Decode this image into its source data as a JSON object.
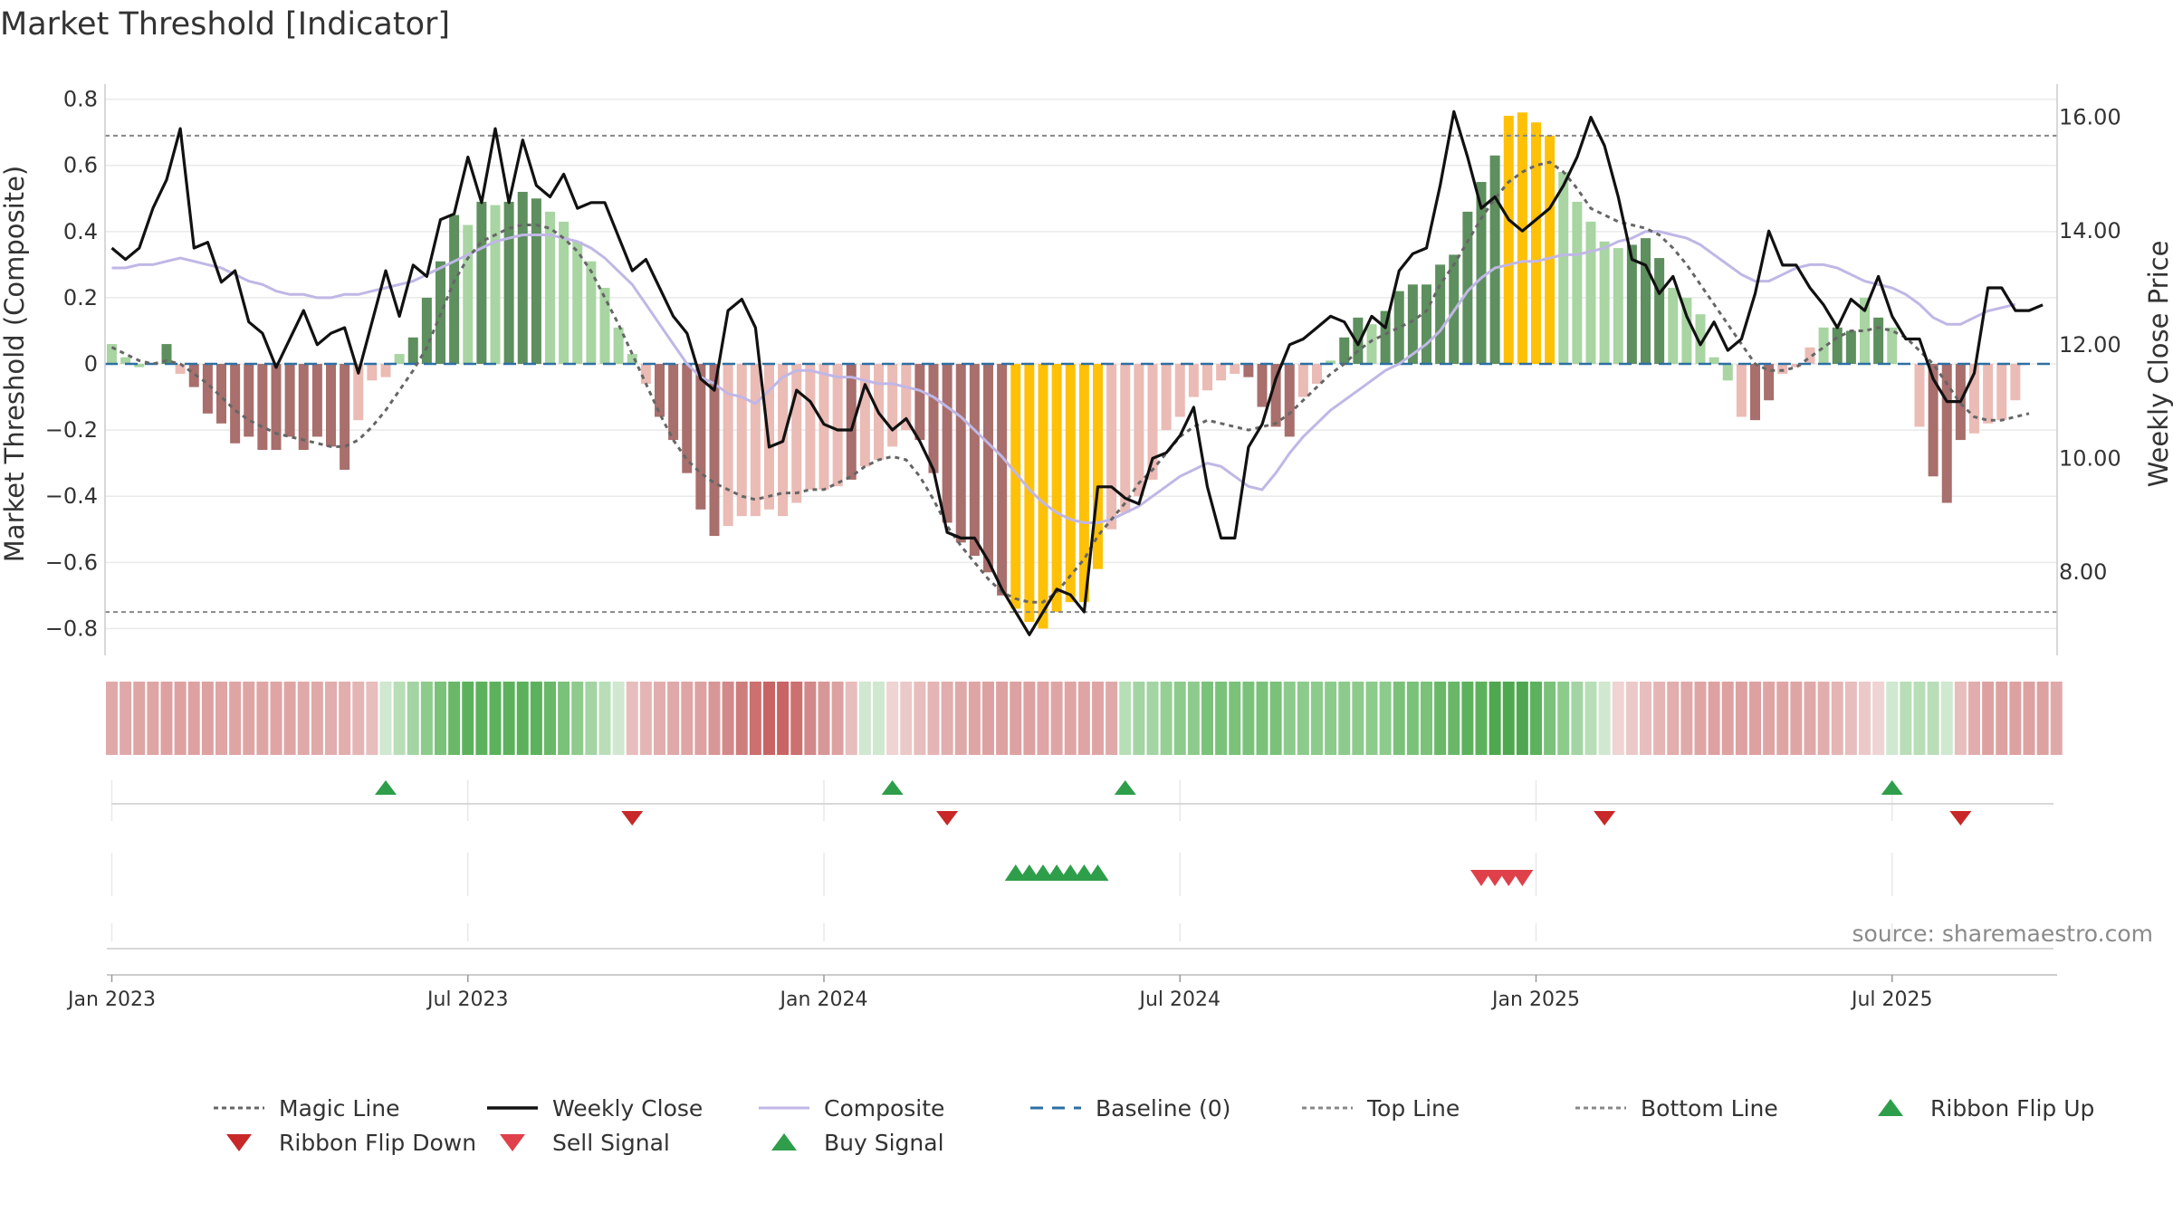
{
  "chart_data": {
    "type": "bar",
    "title": "Market Threshold [Indicator]",
    "ylabel": "Market Threshold (Composite)",
    "y2label": "Weekly Close Price",
    "source": "source: sharemaestro.com",
    "ylim": [
      -0.87,
      0.84
    ],
    "y2lim": [
      6.6,
      16.55
    ],
    "yticks": [
      "0.8",
      "0.6",
      "0.4",
      "0.2",
      "0",
      "−0.2",
      "−0.4",
      "−0.6",
      "−0.8"
    ],
    "yticks_values": [
      0.8,
      0.6,
      0.4,
      0.2,
      0,
      -0.2,
      -0.4,
      -0.6,
      -0.8
    ],
    "y2ticks": [
      "16.00",
      "14.00",
      "12.00",
      "10.00",
      "8.00"
    ],
    "y2ticks_values": [
      16,
      14,
      12,
      10,
      8
    ],
    "xticks": [
      "Jan 2023",
      "Jul 2023",
      "Jan 2024",
      "Jul 2024",
      "Jan 2025",
      "Jul 2025"
    ],
    "xticks_weeks": [
      0,
      26,
      52,
      78,
      104,
      130
    ],
    "week_start": "Jan 2023",
    "top_line": 0.69,
    "bottom_line": -0.75,
    "grid": true,
    "legend_position": "bottom",
    "colors": {
      "dark_green": "#5e8f5e",
      "light_green": "#a8d5a2",
      "dark_red": "#a86f6c",
      "light_red": "#ebbbb5",
      "extreme": "#ffc107",
      "close": "#111111",
      "composite": "#c0b7e6",
      "magic": "#666666",
      "baseline": "#2d6fa3",
      "threshold": "#888888",
      "flip_up": "#2e9e4a",
      "flip_down": "#c82828",
      "buy": "#2e9e4a",
      "sell": "#e0404a"
    },
    "composite_bars": [
      0.06,
      0.02,
      -0.01,
      0,
      0.06,
      -0.03,
      -0.07,
      -0.15,
      -0.18,
      -0.24,
      -0.22,
      -0.26,
      -0.26,
      -0.22,
      -0.26,
      -0.22,
      -0.25,
      -0.32,
      -0.17,
      -0.05,
      -0.04,
      0.03,
      0.08,
      0.2,
      0.31,
      0.45,
      0.42,
      0.49,
      0.48,
      0.49,
      0.52,
      0.5,
      0.46,
      0.43,
      0.37,
      0.31,
      0.23,
      0.11,
      0.03,
      -0.06,
      -0.16,
      -0.23,
      -0.33,
      -0.44,
      -0.52,
      -0.49,
      -0.46,
      -0.46,
      -0.44,
      -0.46,
      -0.42,
      -0.38,
      -0.38,
      -0.37,
      -0.35,
      -0.31,
      -0.29,
      -0.25,
      -0.2,
      -0.23,
      -0.33,
      -0.48,
      -0.54,
      -0.58,
      -0.63,
      -0.7,
      -0.74,
      -0.78,
      -0.8,
      -0.75,
      -0.72,
      -0.72,
      -0.62,
      -0.5,
      -0.45,
      -0.4,
      -0.35,
      -0.2,
      -0.16,
      -0.1,
      -0.08,
      -0.05,
      -0.03,
      -0.04,
      -0.13,
      -0.19,
      -0.22,
      -0.1,
      -0.06,
      0.01,
      0.08,
      0.14,
      0.12,
      0.16,
      0.22,
      0.24,
      0.24,
      0.3,
      0.33,
      0.46,
      0.55,
      0.63,
      0.75,
      0.76,
      0.73,
      0.69,
      0.58,
      0.49,
      0.43,
      0.37,
      0.35,
      0.36,
      0.38,
      0.32,
      0.23,
      0.2,
      0.15,
      0.02,
      -0.05,
      -0.16,
      -0.17,
      -0.11,
      -0.03,
      -0.01,
      0.05,
      0.11,
      0.11,
      0.1,
      0.2,
      0.14,
      0.11,
      0,
      -0.19,
      -0.34,
      -0.42,
      -0.23,
      -0.21,
      -0.18,
      -0.17,
      -0.11
    ],
    "bar_class": [
      "lg",
      "lg",
      "lg",
      "lg",
      "dg",
      "lr",
      "dr",
      "dr",
      "dr",
      "dr",
      "dr",
      "dr",
      "dr",
      "dr",
      "dr",
      "dr",
      "dr",
      "dr",
      "lr",
      "lr",
      "lr",
      "lg",
      "dg",
      "dg",
      "dg",
      "dg",
      "lg",
      "dg",
      "lg",
      "dg",
      "dg",
      "dg",
      "lg",
      "lg",
      "lg",
      "lg",
      "lg",
      "lg",
      "lg",
      "lr",
      "dr",
      "dr",
      "dr",
      "dr",
      "dr",
      "lr",
      "lr",
      "lr",
      "lr",
      "lr",
      "lr",
      "lr",
      "lr",
      "lr",
      "dr",
      "lr",
      "lr",
      "lr",
      "lr",
      "dr",
      "dr",
      "dr",
      "dr",
      "dr",
      "dr",
      "dr",
      "y",
      "y",
      "y",
      "y",
      "y",
      "y",
      "y",
      "lr",
      "lr",
      "lr",
      "lr",
      "lr",
      "lr",
      "lr",
      "lr",
      "lr",
      "lr",
      "dr",
      "dr",
      "dr",
      "dr",
      "lr",
      "lr",
      "lg",
      "dg",
      "dg",
      "lg",
      "dg",
      "dg",
      "dg",
      "dg",
      "dg",
      "dg",
      "dg",
      "dg",
      "dg",
      "y",
      "y",
      "y",
      "y",
      "lg",
      "lg",
      "lg",
      "lg",
      "lg",
      "dg",
      "dg",
      "dg",
      "lg",
      "lg",
      "lg",
      "lg",
      "lg",
      "lr",
      "dr",
      "dr",
      "lr",
      "lr",
      "lr",
      "lg",
      "dg",
      "dg",
      "lg",
      "dg",
      "lg",
      "lg",
      "lr",
      "dr",
      "dr",
      "dr",
      "lr",
      "lr",
      "lr",
      "lr",
      "lr"
    ],
    "weekly_close": [
      13.7,
      13.5,
      13.7,
      14.4,
      14.9,
      15.8,
      13.7,
      13.8,
      13.1,
      13.3,
      12.4,
      12.2,
      11.6,
      12.1,
      12.6,
      12.0,
      12.2,
      12.3,
      11.5,
      12.4,
      13.3,
      12.5,
      13.4,
      13.2,
      14.2,
      14.3,
      15.3,
      14.5,
      15.8,
      14.5,
      15.6,
      14.8,
      14.6,
      15.0,
      14.4,
      14.5,
      14.5,
      13.9,
      13.3,
      13.5,
      13.0,
      12.5,
      12.2,
      11.4,
      11.2,
      12.6,
      12.8,
      12.3,
      10.2,
      10.3,
      11.2,
      11.0,
      10.6,
      10.5,
      10.5,
      11.3,
      10.8,
      10.5,
      10.7,
      10.3,
      9.8,
      8.7,
      8.6,
      8.6,
      8.2,
      7.7,
      7.3,
      6.9,
      7.3,
      7.7,
      7.6,
      7.3,
      9.5,
      9.5,
      9.3,
      9.2,
      10.0,
      10.1,
      10.4,
      10.9,
      9.5,
      8.6,
      8.6,
      10.2,
      10.6,
      11.4,
      12.0,
      12.1,
      12.3,
      12.5,
      12.4,
      12.0,
      12.5,
      12.3,
      13.3,
      13.6,
      13.7,
      14.8,
      16.1,
      15.3,
      14.4,
      14.6,
      14.2,
      14.0,
      14.2,
      14.4,
      14.8,
      15.3,
      16.0,
      15.5,
      14.6,
      13.5,
      13.4,
      12.9,
      13.2,
      12.5,
      12.0,
      12.4,
      11.9,
      12.1,
      12.9,
      14.0,
      13.4,
      13.4,
      13.0,
      12.7,
      12.3,
      12.8,
      12.6,
      13.2,
      12.5,
      12.1,
      12.1,
      11.4,
      11.0,
      11.0,
      11.5,
      13.0,
      13.0,
      12.6,
      12.6,
      12.7
    ],
    "composite_line": [
      0.29,
      0.29,
      0.3,
      0.3,
      0.31,
      0.32,
      0.31,
      0.3,
      0.29,
      0.27,
      0.25,
      0.24,
      0.22,
      0.21,
      0.21,
      0.2,
      0.2,
      0.21,
      0.21,
      0.22,
      0.23,
      0.24,
      0.25,
      0.27,
      0.29,
      0.31,
      0.33,
      0.35,
      0.37,
      0.38,
      0.39,
      0.39,
      0.39,
      0.38,
      0.37,
      0.35,
      0.32,
      0.28,
      0.24,
      0.18,
      0.12,
      0.06,
      0.0,
      -0.04,
      -0.06,
      -0.09,
      -0.1,
      -0.12,
      -0.08,
      -0.04,
      -0.02,
      -0.02,
      -0.03,
      -0.04,
      -0.04,
      -0.05,
      -0.06,
      -0.06,
      -0.07,
      -0.08,
      -0.1,
      -0.13,
      -0.16,
      -0.2,
      -0.24,
      -0.28,
      -0.33,
      -0.38,
      -0.42,
      -0.45,
      -0.47,
      -0.48,
      -0.48,
      -0.47,
      -0.45,
      -0.43,
      -0.4,
      -0.37,
      -0.34,
      -0.32,
      -0.3,
      -0.31,
      -0.34,
      -0.37,
      -0.38,
      -0.33,
      -0.27,
      -0.22,
      -0.18,
      -0.14,
      -0.11,
      -0.08,
      -0.05,
      -0.02,
      0.0,
      0.03,
      0.06,
      0.1,
      0.16,
      0.22,
      0.26,
      0.29,
      0.3,
      0.31,
      0.31,
      0.32,
      0.33,
      0.33,
      0.34,
      0.35,
      0.37,
      0.38,
      0.4,
      0.4,
      0.39,
      0.38,
      0.36,
      0.33,
      0.3,
      0.27,
      0.25,
      0.25,
      0.27,
      0.29,
      0.3,
      0.3,
      0.29,
      0.27,
      0.25,
      0.24,
      0.23,
      0.21,
      0.18,
      0.14,
      0.12,
      0.12,
      0.14,
      0.16,
      0.17,
      0.18
    ],
    "magic_line": [
      0.05,
      0.03,
      0.01,
      0.0,
      0.01,
      0.0,
      -0.03,
      -0.06,
      -0.1,
      -0.14,
      -0.17,
      -0.19,
      -0.21,
      -0.22,
      -0.23,
      -0.24,
      -0.25,
      -0.25,
      -0.23,
      -0.19,
      -0.14,
      -0.08,
      -0.02,
      0.05,
      0.15,
      0.25,
      0.32,
      0.37,
      0.39,
      0.41,
      0.42,
      0.42,
      0.41,
      0.38,
      0.34,
      0.28,
      0.2,
      0.12,
      0.03,
      -0.06,
      -0.15,
      -0.23,
      -0.29,
      -0.33,
      -0.36,
      -0.38,
      -0.4,
      -0.41,
      -0.4,
      -0.39,
      -0.39,
      -0.38,
      -0.38,
      -0.36,
      -0.34,
      -0.31,
      -0.29,
      -0.28,
      -0.29,
      -0.34,
      -0.41,
      -0.49,
      -0.55,
      -0.6,
      -0.65,
      -0.69,
      -0.71,
      -0.72,
      -0.72,
      -0.69,
      -0.64,
      -0.59,
      -0.52,
      -0.47,
      -0.42,
      -0.36,
      -0.32,
      -0.27,
      -0.22,
      -0.19,
      -0.17,
      -0.18,
      -0.19,
      -0.2,
      -0.19,
      -0.18,
      -0.15,
      -0.11,
      -0.07,
      -0.03,
      0.0,
      0.04,
      0.07,
      0.09,
      0.11,
      0.13,
      0.16,
      0.24,
      0.3,
      0.37,
      0.44,
      0.5,
      0.55,
      0.58,
      0.6,
      0.61,
      0.58,
      0.53,
      0.47,
      0.45,
      0.43,
      0.42,
      0.41,
      0.39,
      0.35,
      0.3,
      0.24,
      0.18,
      0.12,
      0.06,
      0.0,
      -0.02,
      -0.02,
      -0.01,
      0.02,
      0.05,
      0.08,
      0.1,
      0.1,
      0.11,
      0.1,
      0.08,
      0.04,
      0.0,
      -0.06,
      -0.12,
      -0.16,
      -0.17,
      -0.17,
      -0.16,
      -0.15
    ],
    "ribbon_colors": [
      "#e0a9a9",
      "#e0a9a9",
      "#dfa5a5",
      "#dfa5a5",
      "#dea1a1",
      "#dea1a1",
      "#dea1a1",
      "#dea1a1",
      "#dfa5a5",
      "#dfa5a5",
      "#dfa5a5",
      "#dfa5a5",
      "#dfa5a5",
      "#dfa5a5",
      "#e0a9a9",
      "#e0a9a9",
      "#e2adad",
      "#e2adad",
      "#e5b5b5",
      "#e8bdbd",
      "#cfe8cf",
      "#b8deb8",
      "#a4d4a4",
      "#8ccb8c",
      "#7ac27a",
      "#68b868",
      "#5cb25c",
      "#5cb25c",
      "#5cb25c",
      "#5cb25c",
      "#5cb25c",
      "#5cb25c",
      "#68b868",
      "#7ac27a",
      "#8ccb8c",
      "#a4d4a4",
      "#b8deb8",
      "#cfe8cf",
      "#e8bdbd",
      "#e5b5b5",
      "#e2adad",
      "#e0a9a9",
      "#dfa5a5",
      "#dea1a1",
      "#d89797",
      "#d28989",
      "#ce7d7d",
      "#cc7070",
      "#c86464",
      "#c86464",
      "#cc7070",
      "#d28989",
      "#d89797",
      "#dea1a1",
      "#e8bdbd",
      "#cfe8cf",
      "#cfe8cf",
      "#f0d3d3",
      "#ecc9c9",
      "#e8bdbd",
      "#e5b5b5",
      "#e2adad",
      "#e0a9a9",
      "#dfa5a5",
      "#dea1a1",
      "#dea1a1",
      "#dea1a1",
      "#dea1a1",
      "#dfa5a5",
      "#dfa5a5",
      "#dfa5a5",
      "#dfa5a5",
      "#dfa5a5",
      "#e0a9a9",
      "#b8deb8",
      "#a4d4a4",
      "#a4d4a4",
      "#95cf95",
      "#8ccb8c",
      "#8ccb8c",
      "#7ac27a",
      "#7ac27a",
      "#7ac27a",
      "#7ac27a",
      "#7ac27a",
      "#7ac27a",
      "#8ccb8c",
      "#8ccb8c",
      "#8ccb8c",
      "#8ccb8c",
      "#8ccb8c",
      "#8ccb8c",
      "#8ccb8c",
      "#8ccb8c",
      "#7ac27a",
      "#7ac27a",
      "#7ac27a",
      "#68b868",
      "#68b868",
      "#5cb25c",
      "#5cb25c",
      "#4fa84f",
      "#4fa84f",
      "#4fa84f",
      "#5cb25c",
      "#7ac27a",
      "#8ccb8c",
      "#a4d4a4",
      "#b8deb8",
      "#cfe8cf",
      "#f0d3d3",
      "#ecc9c9",
      "#e8bdbd",
      "#e5b5b5",
      "#e2adad",
      "#e0a9a9",
      "#dfa5a5",
      "#dea1a1",
      "#dea1a1",
      "#dea1a1",
      "#dea1a1",
      "#dfa5a5",
      "#dfa5a5",
      "#dfa5a5",
      "#e0a9a9",
      "#e2adad",
      "#e5b5b5",
      "#e8bdbd",
      "#ecc9c9",
      "#f0d3d3",
      "#cfe8cf",
      "#b8deb8",
      "#b8deb8",
      "#b8deb8",
      "#cfe8cf",
      "#e8bdbd",
      "#e2adad",
      "#dea1a1",
      "#dea1a1",
      "#dea1a1",
      "#dea1a1",
      "#dea1a1",
      "#e0a9a9"
    ],
    "ribbon_flip_up_weeks": [
      20,
      57,
      74,
      130
    ],
    "ribbon_flip_down_weeks": [
      38,
      61,
      109,
      135
    ],
    "buy_signal_weeks": [
      66,
      67,
      68,
      69,
      70,
      71,
      72
    ],
    "sell_signal_weeks": [
      100,
      101,
      102,
      103
    ]
  },
  "legend": [
    {
      "label": "Magic Line",
      "icon": "dotted-line"
    },
    {
      "label": "Weekly Close",
      "icon": "solid-line"
    },
    {
      "label": "Composite",
      "icon": "lavender-line"
    },
    {
      "label": "Baseline (0)",
      "icon": "dashed-line"
    },
    {
      "label": "Top Line",
      "icon": "dotted-line"
    },
    {
      "label": "Bottom Line",
      "icon": "dotted-line"
    },
    {
      "label": "Ribbon Flip Up",
      "icon": "triangle-up"
    },
    {
      "label": "Ribbon Flip Down",
      "icon": "triangle-down"
    },
    {
      "label": "Sell Signal",
      "icon": "triangle-down"
    },
    {
      "label": "Buy Signal",
      "icon": "triangle-up"
    }
  ]
}
